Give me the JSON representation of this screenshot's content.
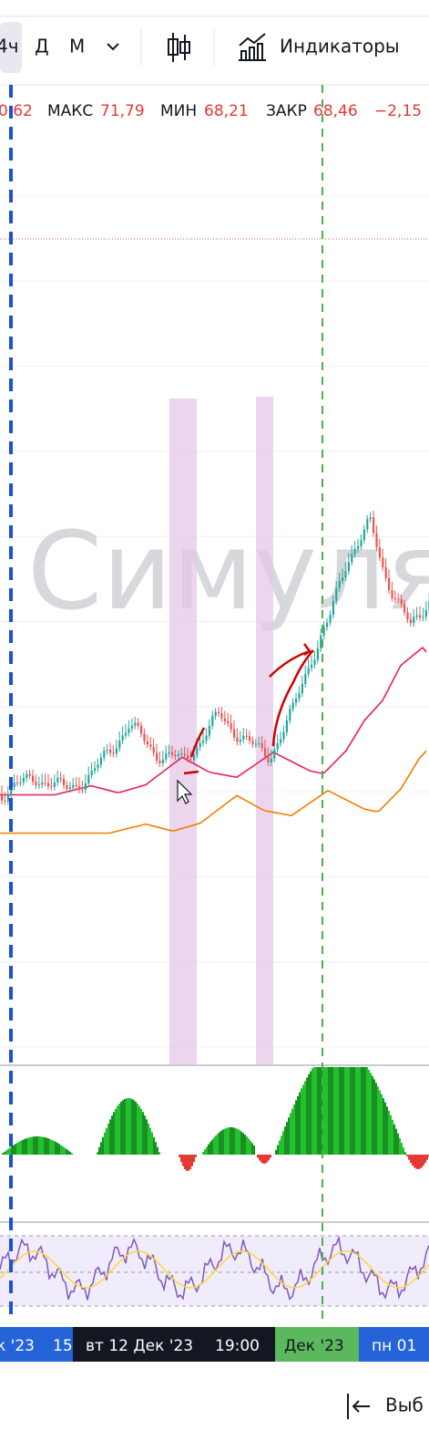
{
  "toolbar": {
    "interval": "4ч",
    "day": "Д",
    "month": "М",
    "indicators": "Индикаторы"
  },
  "legend": {
    "open": "0,62",
    "high_label": "МАКС",
    "high": "71,79",
    "low_label": "МИН",
    "low": "68,21",
    "close_label": "ЗАКР",
    "close": "68,46",
    "change": "−2,15"
  },
  "watermark": "Симуля",
  "time_axis": [
    "к '23",
    "15",
    "вт 12 Дек '23",
    "19:00",
    "Дек '23",
    "пн 01"
  ],
  "footer": "Выб"
}
